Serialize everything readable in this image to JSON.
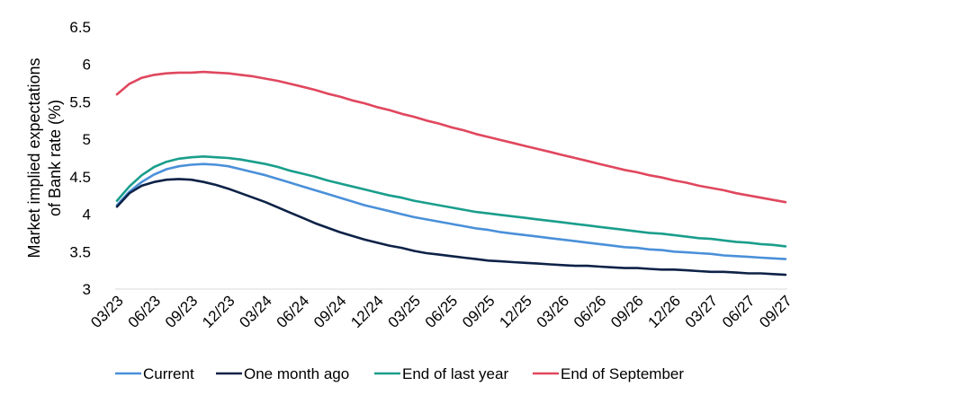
{
  "chart_data": {
    "type": "line",
    "title": "",
    "ylabel_lines": [
      "Market implied expectations",
      "of Bank rate (%)"
    ],
    "xlabel": "",
    "ylim": [
      3,
      6.5
    ],
    "yticks": [
      3,
      3.5,
      4,
      4.5,
      5,
      5.5,
      6,
      6.5
    ],
    "ytick_labels": [
      "3",
      "3.5",
      "4",
      "4.5",
      "5",
      "5.5",
      "6",
      "6.5"
    ],
    "grid": false,
    "legend_position": "bottom",
    "x_tick_labels": [
      "03/23",
      "06/23",
      "09/23",
      "12/23",
      "03/24",
      "06/24",
      "09/24",
      "12/24",
      "03/25",
      "06/25",
      "09/25",
      "12/25",
      "03/26",
      "06/26",
      "09/26",
      "12/26",
      "03/27",
      "06/27",
      "09/27"
    ],
    "x": [
      "03/23",
      "04/23",
      "05/23",
      "06/23",
      "07/23",
      "08/23",
      "09/23",
      "10/23",
      "11/23",
      "12/23",
      "01/24",
      "02/24",
      "03/24",
      "04/24",
      "05/24",
      "06/24",
      "07/24",
      "08/24",
      "09/24",
      "10/24",
      "11/24",
      "12/24",
      "01/25",
      "02/25",
      "03/25",
      "04/25",
      "05/25",
      "06/25",
      "07/25",
      "08/25",
      "09/25",
      "10/25",
      "11/25",
      "12/25",
      "01/26",
      "02/26",
      "03/26",
      "04/26",
      "05/26",
      "06/26",
      "07/26",
      "08/26",
      "09/26",
      "10/26",
      "11/26",
      "12/26",
      "01/27",
      "02/27",
      "03/27",
      "04/27",
      "05/27",
      "06/27",
      "07/27",
      "08/27",
      "09/27"
    ],
    "series": [
      {
        "name": "Current",
        "color": "#4a90d9",
        "values": [
          4.12,
          4.3,
          4.43,
          4.53,
          4.6,
          4.64,
          4.66,
          4.67,
          4.66,
          4.64,
          4.6,
          4.56,
          4.52,
          4.47,
          4.42,
          4.37,
          4.32,
          4.27,
          4.22,
          4.17,
          4.12,
          4.08,
          4.04,
          4.0,
          3.96,
          3.93,
          3.9,
          3.87,
          3.84,
          3.81,
          3.79,
          3.76,
          3.74,
          3.72,
          3.7,
          3.68,
          3.66,
          3.64,
          3.62,
          3.6,
          3.58,
          3.56,
          3.55,
          3.53,
          3.52,
          3.5,
          3.49,
          3.48,
          3.47,
          3.45,
          3.44,
          3.43,
          3.42,
          3.41,
          3.4
        ]
      },
      {
        "name": "One month ago",
        "color": "#0d2247",
        "values": [
          4.1,
          4.28,
          4.38,
          4.43,
          4.46,
          4.47,
          4.46,
          4.43,
          4.39,
          4.34,
          4.28,
          4.22,
          4.16,
          4.09,
          4.02,
          3.95,
          3.88,
          3.82,
          3.76,
          3.71,
          3.66,
          3.62,
          3.58,
          3.55,
          3.51,
          3.48,
          3.46,
          3.44,
          3.42,
          3.4,
          3.38,
          3.37,
          3.36,
          3.35,
          3.34,
          3.33,
          3.32,
          3.31,
          3.31,
          3.3,
          3.29,
          3.28,
          3.28,
          3.27,
          3.26,
          3.26,
          3.25,
          3.24,
          3.23,
          3.23,
          3.22,
          3.21,
          3.21,
          3.2,
          3.19
        ]
      },
      {
        "name": "End of last year",
        "color": "#1a9e8c",
        "values": [
          4.18,
          4.37,
          4.52,
          4.63,
          4.7,
          4.74,
          4.76,
          4.77,
          4.76,
          4.75,
          4.73,
          4.7,
          4.67,
          4.63,
          4.58,
          4.54,
          4.5,
          4.45,
          4.41,
          4.37,
          4.33,
          4.29,
          4.25,
          4.22,
          4.18,
          4.15,
          4.12,
          4.09,
          4.06,
          4.03,
          4.01,
          3.99,
          3.97,
          3.95,
          3.93,
          3.91,
          3.89,
          3.87,
          3.85,
          3.83,
          3.81,
          3.79,
          3.77,
          3.75,
          3.74,
          3.72,
          3.7,
          3.68,
          3.67,
          3.65,
          3.63,
          3.62,
          3.6,
          3.59,
          3.57
        ]
      },
      {
        "name": "End of September",
        "color": "#e0475e",
        "values": [
          5.6,
          5.74,
          5.82,
          5.86,
          5.88,
          5.89,
          5.89,
          5.9,
          5.89,
          5.88,
          5.86,
          5.84,
          5.81,
          5.78,
          5.74,
          5.7,
          5.66,
          5.61,
          5.57,
          5.52,
          5.48,
          5.43,
          5.39,
          5.34,
          5.3,
          5.25,
          5.21,
          5.16,
          5.12,
          5.07,
          5.03,
          4.99,
          4.95,
          4.91,
          4.87,
          4.83,
          4.79,
          4.75,
          4.71,
          4.67,
          4.63,
          4.59,
          4.56,
          4.52,
          4.49,
          4.45,
          4.42,
          4.38,
          4.35,
          4.32,
          4.28,
          4.25,
          4.22,
          4.19,
          4.16
        ]
      }
    ]
  }
}
